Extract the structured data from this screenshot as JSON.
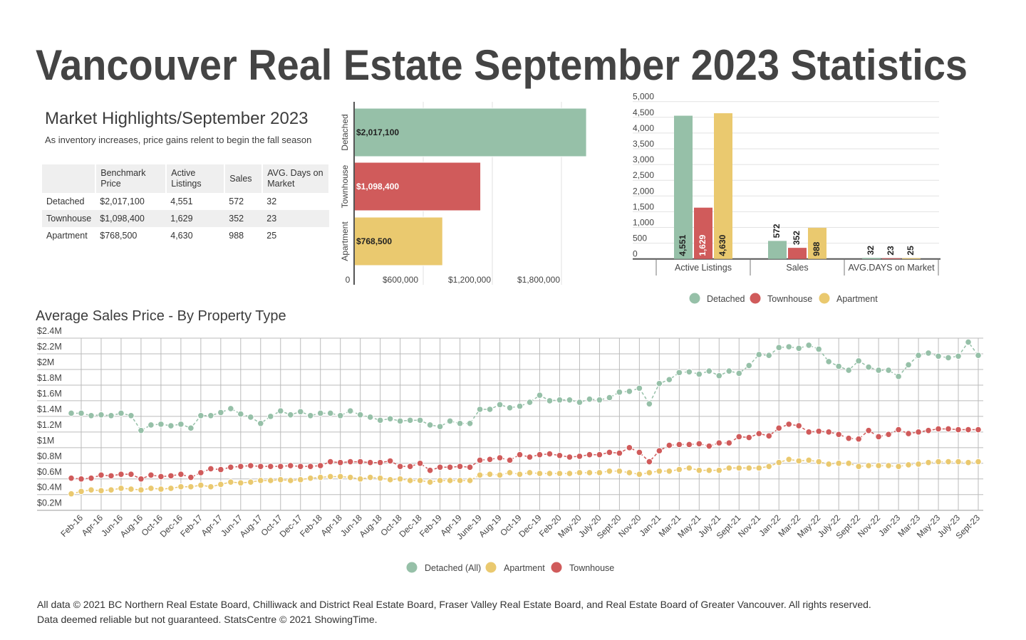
{
  "title": "Vancouver Real Estate September 2023 Statistics",
  "highlights": {
    "title": "Market Highlights/September 2023",
    "subtitle": "As inventory increases, price gains relent to begin the fall season",
    "columns": [
      "",
      "Benchmark Price",
      "Active Listings",
      "Sales",
      "AVG. Days on Market"
    ],
    "rows": [
      [
        "Detached",
        "$2,017,100",
        "4,551",
        "572",
        "32"
      ],
      [
        "Townhouse",
        "$1,098,400",
        "1,629",
        "352",
        "23"
      ],
      [
        "Apartment",
        "$768,500",
        "4,630",
        "988",
        "25"
      ]
    ]
  },
  "colors": {
    "detached": "#96c0a8",
    "townhouse": "#d05b5b",
    "apartment": "#eac96f",
    "text": "#3d3d3d",
    "grid": "#dddddd"
  },
  "chart_data": [
    {
      "type": "bar",
      "orientation": "horizontal",
      "categories": [
        "Detached",
        "Townhouse",
        "Apartment"
      ],
      "values": [
        2017100,
        1098400,
        768500
      ],
      "data_labels": [
        "$2,017,100",
        "$1,098,400",
        "$768,500"
      ],
      "xlim": [
        0,
        2017100
      ],
      "x_ticks": [
        0,
        600000,
        1200000,
        1800000
      ],
      "x_tick_labels": [
        "0",
        "$600,000",
        "$1,200,000",
        "$1,800,000"
      ],
      "grid": true
    },
    {
      "type": "bar",
      "categories": [
        "Active Listings",
        "Sales",
        "AVG.DAYS on Market"
      ],
      "series": [
        {
          "name": "Detached",
          "values": [
            4551,
            572,
            32
          ],
          "labels": [
            "4,551",
            "572",
            "32"
          ]
        },
        {
          "name": "Townhouse",
          "values": [
            1629,
            352,
            23
          ],
          "labels": [
            "1,629",
            "352",
            "23"
          ]
        },
        {
          "name": "Apartment",
          "values": [
            4630,
            988,
            25
          ],
          "labels": [
            "4,630",
            "988",
            "25"
          ]
        }
      ],
      "ylim": [
        0,
        5000
      ],
      "y_tick_labels": [
        "0",
        "500",
        "1,000",
        "1,500",
        "2,000",
        "2,500",
        "3,000",
        "3,500",
        "4,000",
        "4,500",
        "5,000"
      ],
      "legend": "bottom",
      "grid": true
    },
    {
      "type": "line",
      "title": "Average Sales Price - By Property Type",
      "x_tick_labels": [
        "Feb-16",
        "Apr-16",
        "Jun-16",
        "Aug-16",
        "Oct-16",
        "Dec-16",
        "Feb-17",
        "Apr-17",
        "Jun-17",
        "Aug-17",
        "Oct-17",
        "Dec-17",
        "Feb-18",
        "Apr-18",
        "Jun-18",
        "Aug-18",
        "Oct-18",
        "Dec-18",
        "Feb-19",
        "Apr-19",
        "June-19",
        "Aug-19",
        "Oct-19",
        "Dec-19",
        "Feb-20",
        "May-20",
        "July-20",
        "Sept-20",
        "Nov-20",
        "Jan-21",
        "Mar-21",
        "May-21",
        "July-21",
        "Sept-21",
        "Nov-21",
        "Jan-22",
        "Mar-22",
        "May-22",
        "July-22",
        "Sept-22",
        "Nov-22",
        "Jan-23",
        "Mar-23",
        "May-23",
        "July-23",
        "Sept-23"
      ],
      "ylim": [
        0.2,
        2.4
      ],
      "y_unit": "$M",
      "y_tick_labels": [
        "$0.2M",
        "$0.4M",
        "$0.6M",
        "$0.8M",
        "$1M",
        "$1.2M",
        "$1.4M",
        "$1.6M",
        "$1.8M",
        "$2M",
        "$2.2M",
        "$2.4M"
      ],
      "legend": "bottom",
      "grid": true,
      "series": [
        {
          "name": "Detached (All)",
          "color": "#96c0a8",
          "values": [
            1.44,
            1.44,
            1.41,
            1.42,
            1.41,
            1.44,
            1.41,
            1.22,
            1.29,
            1.3,
            1.28,
            1.3,
            1.25,
            1.41,
            1.41,
            1.45,
            1.5,
            1.43,
            1.39,
            1.31,
            1.4,
            1.47,
            1.42,
            1.46,
            1.41,
            1.44,
            1.44,
            1.41,
            1.47,
            1.42,
            1.39,
            1.35,
            1.37,
            1.34,
            1.35,
            1.35,
            1.29,
            1.27,
            1.34,
            1.31,
            1.31,
            1.49,
            1.49,
            1.55,
            1.51,
            1.53,
            1.58,
            1.67,
            1.6,
            1.61,
            1.61,
            1.58,
            1.62,
            1.61,
            1.64,
            1.71,
            1.72,
            1.76,
            1.56,
            1.82,
            1.87,
            1.96,
            1.97,
            1.94,
            1.98,
            1.92,
            1.98,
            1.95,
            2.05,
            2.19,
            2.18,
            2.28,
            2.29,
            2.27,
            2.31,
            2.26,
            2.1,
            2.04,
            1.99,
            2.11,
            2.03,
            1.99,
            1.99,
            1.91,
            2.06,
            2.18,
            2.21,
            2.17,
            2.15,
            2.17,
            2.35,
            2.18
          ]
        },
        {
          "name": "Apartment",
          "color": "#eac96f",
          "values": [
            0.41,
            0.44,
            0.46,
            0.45,
            0.46,
            0.48,
            0.47,
            0.46,
            0.48,
            0.47,
            0.48,
            0.5,
            0.5,
            0.52,
            0.5,
            0.53,
            0.56,
            0.55,
            0.56,
            0.58,
            0.58,
            0.59,
            0.58,
            0.59,
            0.61,
            0.62,
            0.63,
            0.63,
            0.62,
            0.6,
            0.62,
            0.61,
            0.59,
            0.6,
            0.58,
            0.58,
            0.56,
            0.58,
            0.58,
            0.58,
            0.58,
            0.65,
            0.66,
            0.65,
            0.68,
            0.66,
            0.68,
            0.67,
            0.67,
            0.67,
            0.67,
            0.68,
            0.68,
            0.68,
            0.7,
            0.7,
            0.68,
            0.66,
            0.68,
            0.7,
            0.7,
            0.72,
            0.74,
            0.71,
            0.71,
            0.71,
            0.74,
            0.74,
            0.74,
            0.74,
            0.76,
            0.81,
            0.85,
            0.83,
            0.84,
            0.82,
            0.79,
            0.8,
            0.8,
            0.76,
            0.77,
            0.77,
            0.77,
            0.76,
            0.78,
            0.79,
            0.81,
            0.82,
            0.82,
            0.82,
            0.81,
            0.82
          ]
        },
        {
          "name": "Townhouse",
          "color": "#d05b5b",
          "values": [
            0.61,
            0.6,
            0.61,
            0.65,
            0.64,
            0.66,
            0.66,
            0.6,
            0.65,
            0.63,
            0.64,
            0.66,
            0.62,
            0.68,
            0.73,
            0.72,
            0.75,
            0.76,
            0.77,
            0.76,
            0.76,
            0.76,
            0.77,
            0.76,
            0.76,
            0.77,
            0.82,
            0.81,
            0.82,
            0.82,
            0.81,
            0.81,
            0.83,
            0.76,
            0.76,
            0.8,
            0.71,
            0.75,
            0.75,
            0.76,
            0.75,
            0.84,
            0.85,
            0.87,
            0.84,
            0.91,
            0.88,
            0.91,
            0.92,
            0.9,
            0.88,
            0.89,
            0.91,
            0.91,
            0.94,
            0.93,
            1.0,
            0.94,
            0.82,
            0.96,
            1.03,
            1.04,
            1.04,
            1.05,
            1.02,
            1.06,
            1.06,
            1.14,
            1.13,
            1.18,
            1.15,
            1.25,
            1.3,
            1.28,
            1.2,
            1.21,
            1.2,
            1.17,
            1.12,
            1.11,
            1.22,
            1.14,
            1.17,
            1.23,
            1.18,
            1.2,
            1.22,
            1.24,
            1.24,
            1.23,
            1.23,
            1.23
          ]
        }
      ]
    }
  ],
  "footer": {
    "line1": "All data © 2021 BC Northern Real Estate Board, Chilliwack and District Real Estate Board, Fraser Valley Real Estate Board, and Real Estate Board of Greater Vancouver. All rights reserved.",
    "line2": "Data deemed reliable but not guaranteed. StatsCentre © 2021 ShowingTime."
  }
}
